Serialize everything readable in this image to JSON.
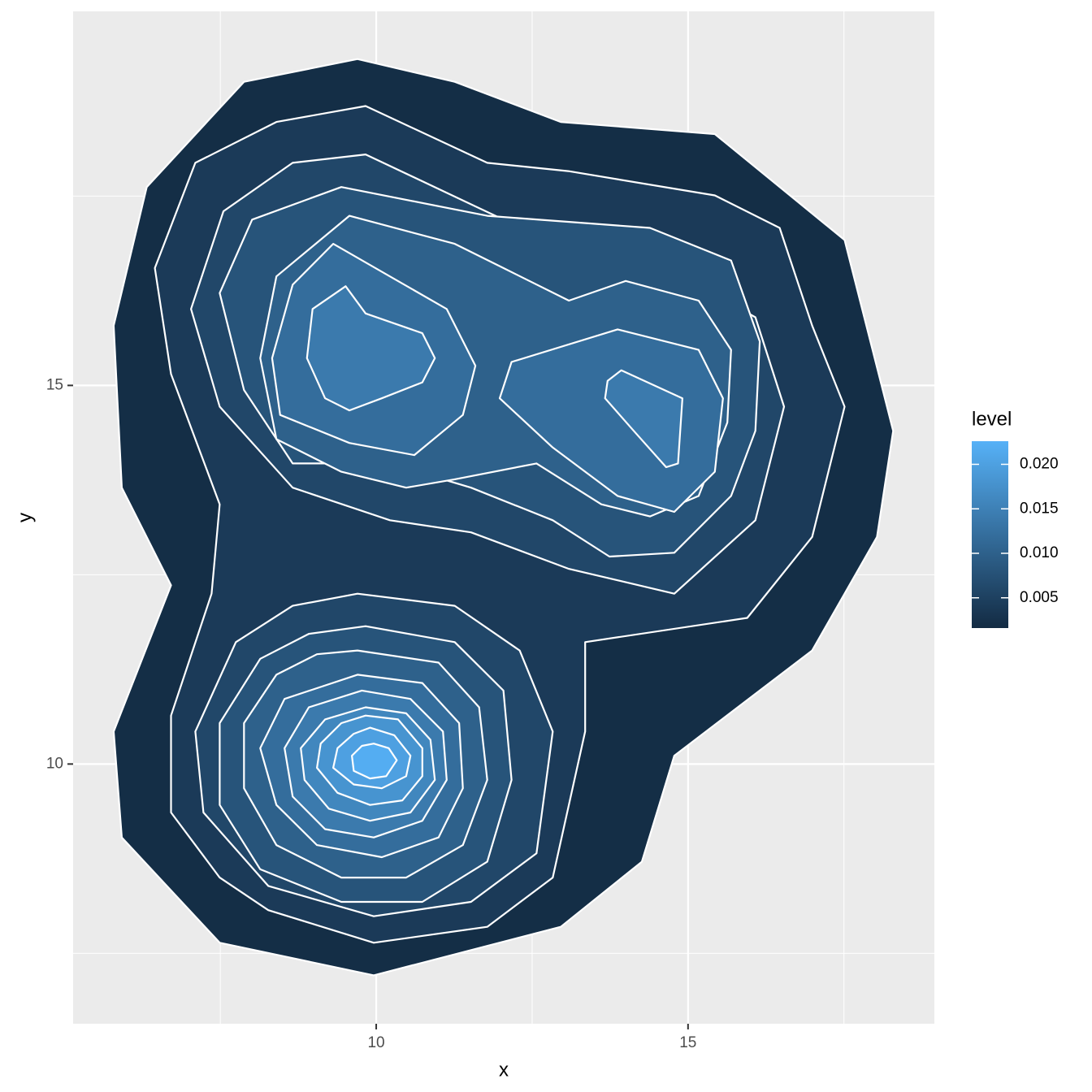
{
  "chart_data": {
    "type": "contour",
    "x_label": "x",
    "y_label": "y",
    "xlim": [
      5.14,
      18.95
    ],
    "ylim": [
      6.57,
      19.94
    ],
    "xticks": [
      10,
      15
    ],
    "yticks": [
      10,
      15
    ],
    "x_minor_grid": [
      7.5,
      12.5,
      17.5
    ],
    "y_minor_grid": [
      7.5,
      12.5,
      17.5
    ],
    "grid": true,
    "line_color": "#FFFFFF",
    "legend_title": "level",
    "legend_position": "right",
    "color_low": "#132B43",
    "color_high": "#56B1F7",
    "colorbar_lim": [
      0.0016,
      0.0226
    ],
    "colorbar_ticks": [
      0.005,
      {
        "value": 0.01,
        "label": "0.010"
      },
      0.015,
      {
        "value": 0.02,
        "label": "0.020"
      }
    ],
    "contours": [
      {
        "level": 0.002,
        "x": [
          9.7,
          11.26,
          12.96,
          15.43,
          17.51,
          18.29,
          18.03,
          16.99,
          14.78,
          14.26,
          12.96,
          9.96,
          7.49,
          5.92,
          5.79,
          6.71,
          5.92,
          5.79,
          6.32,
          7.88
        ],
        "y": [
          19.31,
          19.01,
          18.48,
          18.32,
          16.92,
          14.4,
          13.0,
          11.5,
          10.11,
          8.71,
          7.85,
          7.21,
          7.64,
          9.03,
          10.43,
          12.36,
          13.65,
          15.79,
          17.62,
          19.01
        ]
      },
      {
        "level": 0.004,
        "x": [
          8.4,
          9.83,
          11.78,
          13.08,
          15.43,
          16.47,
          16.99,
          17.51,
          16.99,
          15.95,
          13.35,
          13.35,
          12.83,
          11.78,
          9.96,
          8.27,
          7.49,
          6.71,
          6.71,
          7.36,
          7.49,
          6.71,
          6.45,
          7.1
        ],
        "y": [
          18.48,
          18.69,
          17.94,
          17.83,
          17.51,
          17.08,
          15.79,
          14.72,
          13.0,
          11.93,
          11.61,
          10.43,
          8.5,
          7.85,
          7.64,
          8.07,
          8.5,
          9.36,
          10.64,
          12.25,
          13.43,
          15.15,
          16.55,
          17.94
        ]
      },
      {
        "level": 0.006,
        "x": [
          8.66,
          9.83,
          12.04,
          14.0,
          16.08,
          16.54,
          16.08,
          14.78,
          13.08,
          11.52,
          10.22,
          8.66,
          7.49,
          7.03,
          7.55
        ],
        "y": [
          17.94,
          18.05,
          17.19,
          16.87,
          15.9,
          14.72,
          13.22,
          12.25,
          12.58,
          13.06,
          13.22,
          13.65,
          14.72,
          16.01,
          17.3
        ]
      },
      {
        "level": 0.006,
        "x": [
          9.7,
          11.26,
          12.3,
          12.83,
          12.57,
          11.52,
          9.96,
          8.27,
          7.23,
          7.1,
          7.75,
          8.66
        ],
        "y": [
          12.25,
          12.09,
          11.5,
          10.43,
          8.82,
          8.18,
          7.99,
          8.39,
          9.36,
          10.43,
          11.61,
          12.09
        ]
      },
      {
        "level": 0.008,
        "x": [
          8.01,
          9.44,
          11.78,
          14.39,
          15.69,
          16.15,
          16.08,
          15.69,
          14.78,
          13.74,
          12.83,
          11.52,
          10.22,
          8.66,
          7.88,
          7.49
        ],
        "y": [
          17.19,
          17.62,
          17.24,
          17.08,
          16.65,
          15.58,
          14.4,
          13.54,
          12.79,
          12.74,
          13.22,
          13.65,
          13.97,
          13.97,
          14.94,
          16.22
        ]
      },
      {
        "level": 0.008,
        "x": [
          9.83,
          11.26,
          12.04,
          12.17,
          11.78,
          10.74,
          9.44,
          8.14,
          7.49,
          7.49,
          8.14,
          8.92
        ],
        "y": [
          11.82,
          11.61,
          10.97,
          9.79,
          8.71,
          8.18,
          8.18,
          8.61,
          9.46,
          10.54,
          11.39,
          11.72
        ]
      },
      {
        "level": 0.01,
        "x": [
          8.4,
          9.57,
          11.26,
          12.04,
          13.09,
          14.0,
          15.17,
          15.69,
          15.63,
          15.17,
          14.39,
          13.61,
          12.57,
          11.26,
          10.48,
          9.44,
          8.4,
          8.14
        ],
        "y": [
          16.44,
          17.24,
          16.87,
          16.55,
          16.12,
          16.38,
          16.12,
          15.47,
          14.51,
          13.54,
          13.27,
          13.43,
          13.97,
          13.76,
          13.65,
          13.86,
          14.29,
          15.36
        ]
      },
      {
        "level": 0.01,
        "x": [
          9.7,
          11.0,
          11.65,
          11.78,
          11.39,
          10.48,
          9.44,
          8.4,
          7.88,
          7.88,
          8.4,
          9.05
        ],
        "y": [
          11.5,
          11.34,
          10.75,
          9.79,
          8.93,
          8.5,
          8.5,
          8.93,
          9.68,
          10.54,
          11.18,
          11.45
        ]
      },
      {
        "level": 0.012,
        "x": [
          9.31,
          10.22,
          11.13,
          11.59,
          11.39,
          10.61,
          9.57,
          8.46,
          8.33,
          8.66
        ],
        "y": [
          16.87,
          16.44,
          16.01,
          15.26,
          14.61,
          14.08,
          14.24,
          14.61,
          15.36,
          16.33
        ]
      },
      {
        "level": 0.012,
        "x": [
          12.17,
          13.87,
          15.17,
          15.56,
          15.43,
          14.78,
          13.87,
          12.83,
          11.98
        ],
        "y": [
          15.31,
          15.74,
          15.47,
          14.83,
          13.86,
          13.33,
          13.54,
          14.18,
          14.83
        ]
      },
      {
        "level": 0.012,
        "x": [
          9.7,
          10.74,
          11.33,
          11.39,
          11.0,
          10.09,
          9.05,
          8.4,
          8.14,
          8.53
        ],
        "y": [
          11.18,
          11.07,
          10.54,
          9.68,
          9.03,
          8.77,
          8.93,
          9.46,
          10.21,
          10.86
        ]
      },
      {
        "level": 0.014,
        "x": [
          8.98,
          9.51,
          9.83,
          10.74,
          10.94,
          10.74,
          10.09,
          9.57,
          9.18,
          8.89
        ],
        "y": [
          16.01,
          16.31,
          15.95,
          15.69,
          15.36,
          15.04,
          14.83,
          14.67,
          14.83,
          15.36
        ]
      },
      {
        "level": 0.014,
        "x": [
          13.93,
          14.91,
          14.84,
          14.65,
          14.13,
          13.67,
          13.71
        ],
        "y": [
          15.2,
          14.83,
          13.97,
          13.92,
          14.4,
          14.83,
          15.06
        ]
      },
      {
        "level": 0.014,
        "x": [
          9.77,
          10.55,
          11.07,
          11.13,
          10.74,
          9.96,
          9.18,
          8.66,
          8.53,
          8.92
        ],
        "y": [
          10.97,
          10.86,
          10.43,
          9.79,
          9.25,
          9.03,
          9.14,
          9.57,
          10.21,
          10.75
        ]
      },
      {
        "level": 0.016,
        "x": [
          9.83,
          10.48,
          10.87,
          10.94,
          10.55,
          9.9,
          9.24,
          8.85,
          8.79,
          9.18
        ],
        "y": [
          10.75,
          10.67,
          10.32,
          9.79,
          9.36,
          9.25,
          9.41,
          9.79,
          10.21,
          10.59
        ]
      },
      {
        "level": 0.018,
        "x": [
          9.83,
          10.35,
          10.74,
          10.74,
          10.42,
          9.9,
          9.38,
          9.05,
          9.11,
          9.44
        ],
        "y": [
          10.64,
          10.59,
          10.21,
          9.84,
          9.52,
          9.46,
          9.62,
          9.95,
          10.27,
          10.54
        ]
      },
      {
        "level": 0.02,
        "x": [
          9.9,
          10.29,
          10.55,
          10.48,
          10.09,
          9.64,
          9.31,
          9.38,
          9.64
        ],
        "y": [
          10.48,
          10.38,
          10.11,
          9.84,
          9.68,
          9.73,
          9.95,
          10.21,
          10.4
        ]
      },
      {
        "level": 0.022,
        "x": [
          9.96,
          10.2,
          10.33,
          10.16,
          9.9,
          9.64,
          9.61,
          9.77
        ],
        "y": [
          10.27,
          10.21,
          10.05,
          9.84,
          9.81,
          9.91,
          10.11,
          10.24
        ]
      }
    ]
  }
}
